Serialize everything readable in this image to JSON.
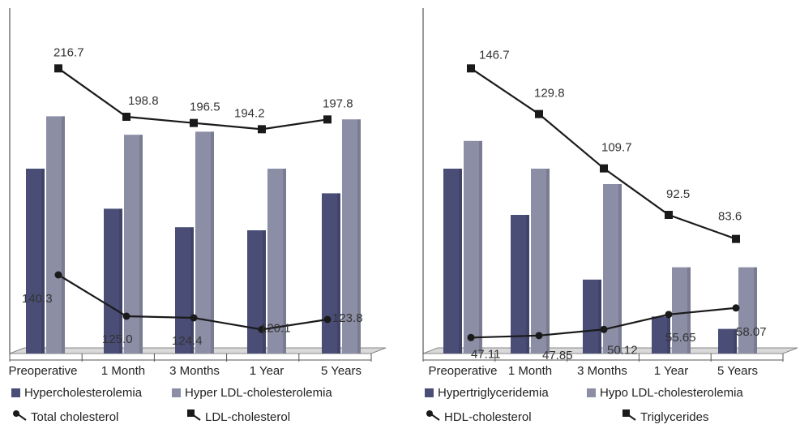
{
  "colors": {
    "bar_a": "#4a4e77",
    "bar_b": "#8b8ea5",
    "line": "#1a1a1a",
    "floor": "#d9d9d9"
  },
  "chart_data": [
    {
      "type": "bar",
      "categories": [
        "Preoperative",
        "1 Month",
        "3 Months",
        "1 Year",
        "5 Years"
      ],
      "ylim": [
        0,
        100
      ],
      "series": [
        {
          "name": "Hypercholesterolemia",
          "kind": "bar",
          "values": [
            60,
            47,
            41,
            40,
            52
          ]
        },
        {
          "name": "Hyper LDL-cholesterolemia",
          "kind": "bar",
          "values": [
            77,
            71,
            72,
            60,
            76
          ]
        }
      ],
      "lines": {
        "ylim": [
          110,
          230
        ],
        "series": [
          {
            "name": "Total cholesterol",
            "marker": "circle",
            "values": [
              140.3,
              125.0,
              124.4,
              120.1,
              123.8
            ],
            "labels": [
              "140.3",
              "125.0",
              "124.4",
              "120.1",
              "123.8"
            ]
          },
          {
            "name": "LDL-cholesterol",
            "marker": "square",
            "values": [
              216.7,
              198.8,
              196.5,
              194.2,
              197.8
            ],
            "labels": [
              "216.7",
              "198.8",
              "196.5",
              "194.2",
              "197.8"
            ]
          }
        ]
      },
      "legend_placement": "bottom"
    },
    {
      "type": "bar",
      "categories": [
        "Preoperative",
        "1 Month",
        "3 Months",
        "1 Year",
        "5 Years"
      ],
      "ylim": [
        0,
        100
      ],
      "series": [
        {
          "name": "Hypertriglyceridemia",
          "kind": "bar",
          "values": [
            60,
            45,
            24,
            12,
            8
          ]
        },
        {
          "name": "Hypo LDL-cholesterolemia",
          "kind": "bar",
          "values": [
            69,
            60,
            55,
            28,
            28
          ]
        }
      ],
      "lines": {
        "ylim": [
          40,
          160
        ],
        "series": [
          {
            "name": "HDL-cholesterol",
            "marker": "circle",
            "values": [
              47.11,
              47.85,
              50.12,
              55.65,
              58.07
            ],
            "labels": [
              "47.11",
              "47.85",
              "50.12",
              "55.65",
              "58.07"
            ]
          },
          {
            "name": "Triglycerides",
            "marker": "square",
            "values": [
              146.7,
              129.8,
              109.7,
              92.5,
              83.6
            ],
            "labels": [
              "146.7",
              "129.8",
              "109.7",
              "92.5",
              "83.6"
            ]
          }
        ]
      },
      "legend_placement": "bottom"
    }
  ]
}
